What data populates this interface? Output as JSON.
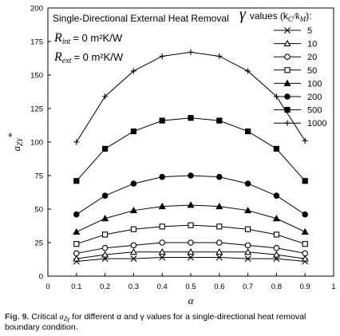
{
  "chart_data": {
    "type": "line",
    "annotation": "Single-Directional External Heat Removal",
    "r_int": {
      "symbol": "R",
      "subscript": "int",
      "value": "= 0 m²K/W"
    },
    "r_ext": {
      "symbol": "R",
      "subscript": "ext",
      "value": "= 0 m²K/W"
    },
    "legend_title": {
      "symbol": "γ",
      "text": "values (k",
      "sub1": "C",
      "mid": "/k",
      "sub2": "M",
      "end": "):"
    },
    "x_label": "α",
    "y_label": {
      "symbol": "a",
      "subscript": "ZY",
      "sup": "*"
    },
    "x": [
      0.1,
      0.2,
      0.3,
      0.4,
      0.5,
      0.6,
      0.7,
      0.8,
      0.9
    ],
    "xlim": [
      0,
      1
    ],
    "xticks": [
      0,
      0.1,
      0.2,
      0.3,
      0.4,
      0.5,
      0.6,
      0.7,
      0.8,
      0.9,
      1
    ],
    "ylim": [
      0,
      200
    ],
    "yticks": [
      0,
      25,
      50,
      75,
      100,
      125,
      150,
      175,
      200
    ],
    "series": [
      {
        "name": "5",
        "marker": "x",
        "color": "#000",
        "values": [
          11,
          13,
          13,
          14,
          14,
          14,
          13,
          13,
          11
        ]
      },
      {
        "name": "10",
        "marker": "triangle-open",
        "color": "#000",
        "values": [
          13,
          16,
          18,
          18,
          18,
          18,
          18,
          16,
          13
        ]
      },
      {
        "name": "20",
        "marker": "circle-open",
        "color": "#000",
        "values": [
          17,
          21,
          23,
          25,
          25,
          25,
          23,
          21,
          17
        ]
      },
      {
        "name": "50",
        "marker": "square-open",
        "color": "#000",
        "values": [
          24,
          31,
          35,
          37,
          38,
          37,
          35,
          31,
          24
        ]
      },
      {
        "name": "100",
        "marker": "triangle",
        "color": "#000",
        "values": [
          33,
          43,
          49,
          52,
          53,
          52,
          49,
          43,
          33
        ]
      },
      {
        "name": "200",
        "marker": "circle",
        "color": "#000",
        "values": [
          46,
          60,
          69,
          74,
          75,
          74,
          69,
          60,
          46
        ]
      },
      {
        "name": "500",
        "marker": "square",
        "color": "#000",
        "values": [
          71,
          95,
          108,
          116,
          118,
          116,
          108,
          95,
          71
        ]
      },
      {
        "name": "1000",
        "marker": "plus",
        "color": "#000",
        "values": [
          100,
          134,
          153,
          164,
          167,
          164,
          153,
          134,
          101
        ]
      }
    ]
  },
  "caption": {
    "label": "Fig. 9.",
    "text1": "Critical",
    "symbol": "a",
    "subscript": "Zγ",
    "text2": "for different α and γ values for a single-directional heat removal",
    "text3": "boundary condition."
  }
}
